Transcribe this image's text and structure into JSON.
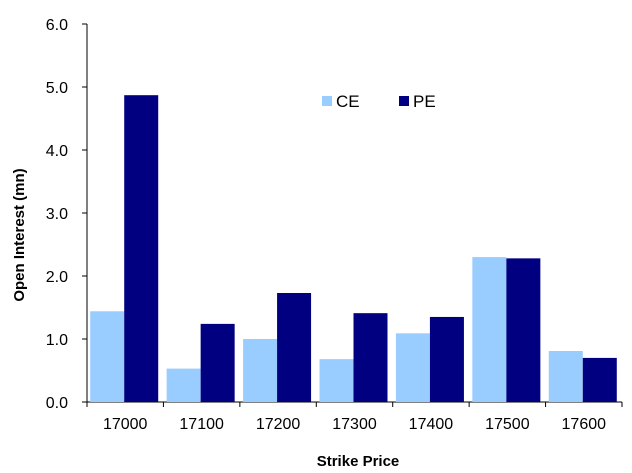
{
  "chart_data": {
    "type": "bar",
    "xlabel": "Strike Price",
    "ylabel": "Open Interest (mn)",
    "categories": [
      "17000",
      "17100",
      "17200",
      "17300",
      "17400",
      "17500",
      "17600"
    ],
    "series": [
      {
        "name": "CE",
        "color": "#99ccff",
        "values": [
          1.44,
          0.53,
          1.0,
          0.68,
          1.09,
          2.3,
          0.81
        ]
      },
      {
        "name": "PE",
        "color": "#000080",
        "values": [
          4.87,
          1.24,
          1.73,
          1.41,
          1.35,
          2.28,
          0.7
        ]
      }
    ],
    "ylim": [
      0,
      6
    ],
    "yticks": [
      "0.0",
      "1.0",
      "2.0",
      "3.0",
      "4.0",
      "5.0",
      "6.0"
    ],
    "grid": false,
    "legend_position": "top-center"
  }
}
